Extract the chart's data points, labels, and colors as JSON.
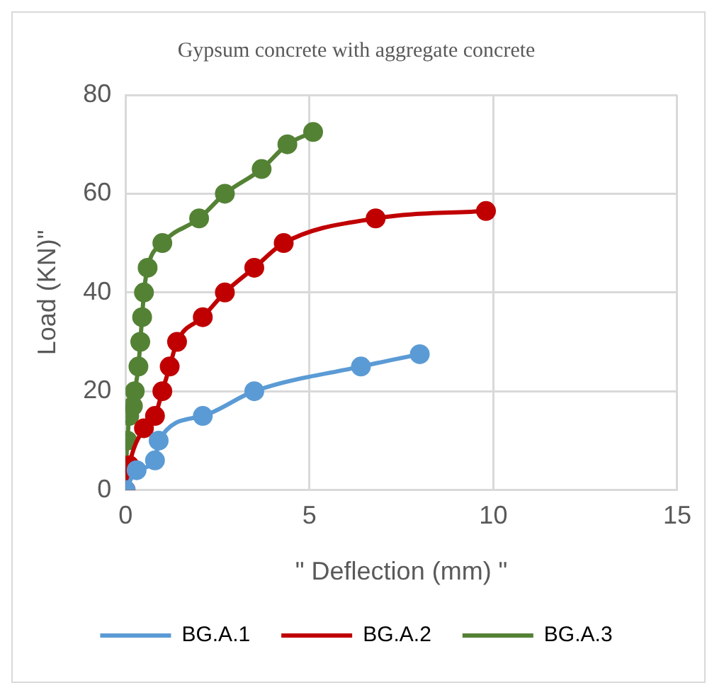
{
  "chart_data": {
    "type": "line",
    "title": "Gypsum concrete with aggregate concrete",
    "xlabel": "\" Deflection (mm) \"",
    "ylabel": "Load (KN)\"",
    "xlim": [
      0,
      15
    ],
    "xticks": [
      0,
      5,
      10,
      15
    ],
    "ylim": [
      0,
      80
    ],
    "yticks": [
      0,
      20,
      40,
      60,
      80
    ],
    "grid": true,
    "legend": "bottom",
    "marker": "circle",
    "line_style": "solid",
    "series": [
      {
        "name": "BG.A.1",
        "color": "#5b9bd5",
        "x": [
          0,
          0.3,
          0.8,
          0.9,
          2.1,
          3.5,
          6.4,
          8
        ],
        "values": [
          0,
          4,
          6,
          10,
          15,
          20,
          25,
          27.5
        ]
      },
      {
        "name": "BG.A.2",
        "color": "#c00000",
        "x": [
          0,
          0.1,
          0.5,
          0.8,
          1,
          1.2,
          1.4,
          2.1,
          2.7,
          3.5,
          4.3,
          6.8,
          9.8
        ],
        "values": [
          0,
          5,
          12.5,
          15,
          20,
          25,
          30,
          35,
          40,
          45,
          50,
          55,
          56.5
        ]
      },
      {
        "name": "BG.A.3",
        "color": "#548235",
        "x": [
          0,
          0,
          0.05,
          0.1,
          0.2,
          0.25,
          0.35,
          0.4,
          0.45,
          0.5,
          0.6,
          1,
          2,
          2.7,
          3.7,
          4.4,
          5.1
        ],
        "values": [
          0,
          5,
          10,
          15,
          17,
          20,
          25,
          30,
          35,
          40,
          45,
          50,
          55,
          60,
          65,
          70,
          72.5
        ]
      }
    ]
  }
}
